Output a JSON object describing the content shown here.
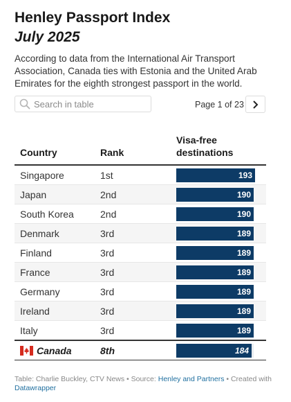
{
  "header": {
    "title": "Henley Passport Index",
    "subtitle": "July 2025",
    "description": "According to data from the International Air Transport Association, Canada ties with Estonia and the United Arab Emirates for the eighth strongest passport in the world."
  },
  "search": {
    "placeholder": "Search in table",
    "icon": "search-icon"
  },
  "pagination": {
    "label": "Page 1 of 23",
    "next_icon": "chevron-right-icon"
  },
  "columns": {
    "country": "Country",
    "rank": "Rank",
    "visa": "Visa-free destinations"
  },
  "colors": {
    "bar": "#0d3b66",
    "bar_track": "#e8ecf0",
    "alt_row": "#f5f5f5",
    "footer_link": "#1f6f9f"
  },
  "chart_data": {
    "type": "table",
    "title": "Henley Passport Index",
    "subtitle": "July 2025",
    "columns": [
      "Country",
      "Rank",
      "Visa-free destinations"
    ],
    "bar_max": 193,
    "rows": [
      {
        "country": "Singapore",
        "rank": "1st",
        "value": 193
      },
      {
        "country": "Japan",
        "rank": "2nd",
        "value": 190
      },
      {
        "country": "South Korea",
        "rank": "2nd",
        "value": 190
      },
      {
        "country": "Denmark",
        "rank": "3rd",
        "value": 189
      },
      {
        "country": "Finland",
        "rank": "3rd",
        "value": 189
      },
      {
        "country": "France",
        "rank": "3rd",
        "value": 189
      },
      {
        "country": "Germany",
        "rank": "3rd",
        "value": 189
      },
      {
        "country": "Ireland",
        "rank": "3rd",
        "value": 189
      },
      {
        "country": "Italy",
        "rank": "3rd",
        "value": 189
      }
    ],
    "highlight": {
      "country": "Canada",
      "rank": "8th",
      "value": 184,
      "flag": "canada-flag-icon"
    }
  },
  "footer": {
    "prefix": "Table: Charlie Buckley, CTV News • Source: ",
    "source_link": "Henley and Partners",
    "middle": " • Created with ",
    "tool_link": "Datawrapper"
  }
}
